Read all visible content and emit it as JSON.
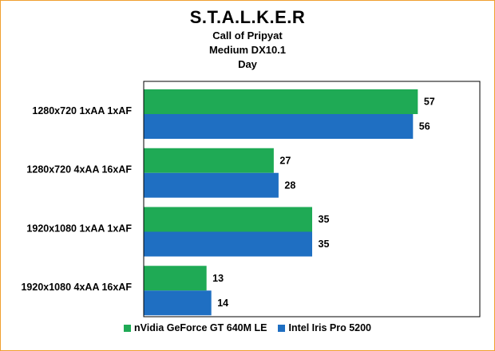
{
  "chart_data": {
    "type": "bar",
    "orientation": "horizontal",
    "title": "S.T.A.L.K.E.R",
    "subtitles": [
      "Call of Pripyat",
      "Medium DX10.1",
      "Day"
    ],
    "categories": [
      "1280x720 1xAA 1xAF",
      "1280x720 4xAA 16xAF",
      "1920x1080 1xAA 1xAF",
      "1920x1080 4xAA 16xAF"
    ],
    "series": [
      {
        "name": "nVidia GeForce GT 640M LE",
        "color": "#1faa55",
        "values": [
          57,
          27,
          35,
          13
        ]
      },
      {
        "name": "Intel Iris Pro 5200",
        "color": "#1f6fc2",
        "values": [
          56,
          28,
          35,
          14
        ]
      }
    ],
    "xlim": [
      0,
      70
    ],
    "grid": false,
    "legend_position": "bottom"
  }
}
